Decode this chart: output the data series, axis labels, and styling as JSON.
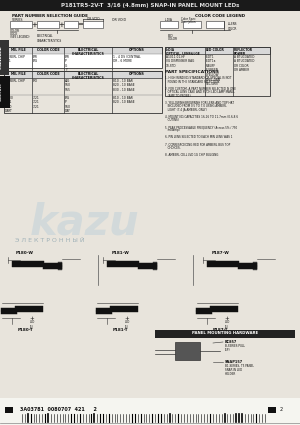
{
  "header_text": "P181TR5-2V-T  3/16 (4.8mm) SNAP-IN PANEL MOUNT LEDs",
  "bg_color": "#e8e4dc",
  "header_bg": "#1a1a1a",
  "header_fg": "#e0e0e0",
  "part_number_guide_label": "PART NUMBER SELECTION GUIDE",
  "color_code_legend_label": "COLOR CODE LEGEND",
  "part_spec_label": "PART SPECIFICATIONS",
  "footer_barcode_text": "3A03781  0080707  421     2",
  "spec_lines": [
    "1. HIGH WINDING STANDARD OR SPECIAL IS NOT",
    "   FOUND IN THE STANDARD SELECTION.",
    "",
    "2. FOR CUSTOM, A PART NUMBER SELECTED IS ONE",
    "   OPTICAL LENS CASE AND SUCH LED LAMP MANU-",
    "   (AMP TO PROBE)",
    "",
    "3. YELLOWISH/BROWNISH FOR LENS AND TOP HAT",
    "   INCLUDED FROM 0.5 TO 7.0 USING AMBERL",
    "   LIGHT (7.4 JA AMBERL ONLY)",
    "",
    "4. MOUNTING CAPACITIES 16-16 TO 11.7mm (0.6-8.6",
    "   CUTINS)",
    "",
    "5. PEAK PROCESSABLE FREQUENCY (Across 5% / 750",
    "   miliamp)",
    "",
    "6. PIN LENS SELECTED TO EACH MIN LENS WAS 1",
    "",
    "7. CORRESPONDING RED FOR AMBERL BUS TOP",
    "   CHOICES.",
    "",
    "8. AMBERL CELL LVD 1G CHIP BULGING"
  ]
}
